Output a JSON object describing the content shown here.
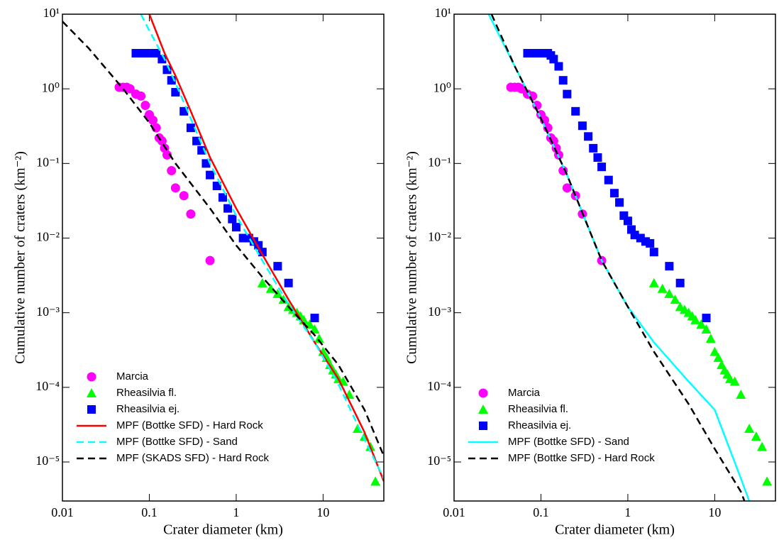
{
  "chart_data": [
    {
      "type": "line",
      "log_x": true,
      "log_y": true,
      "legend": "lower left",
      "xlabel": "Crater diameter (km)",
      "ylabel": "Cumulative number of craters (km⁻²)",
      "xlim": [
        0.01,
        50
      ],
      "ylim": [
        3e-06,
        10
      ],
      "xticks": [
        0.01,
        0.1,
        1,
        10
      ],
      "yticks": [
        {
          "value": 1e-05,
          "label": "10⁻⁵"
        },
        {
          "value": 0.0001,
          "label": "10⁻⁴"
        },
        {
          "value": 0.001,
          "label": "10⁻³"
        },
        {
          "value": 0.01,
          "label": "10⁻²"
        },
        {
          "value": 0.1,
          "label": "10⁻¹"
        },
        {
          "value": 1,
          "label": "10⁰"
        },
        {
          "value": 10,
          "label": "10¹"
        }
      ],
      "series": [
        {
          "name": "Marcia",
          "color": "#ff00ff",
          "style": "circle",
          "x": [
            0.045,
            0.05,
            0.055,
            0.06,
            0.07,
            0.08,
            0.09,
            0.1,
            0.11,
            0.12,
            0.13,
            0.14,
            0.15,
            0.16,
            0.18,
            0.2,
            0.25,
            0.3,
            0.5
          ],
          "values": [
            1.05,
            1.05,
            1.05,
            1.0,
            0.85,
            0.8,
            0.6,
            0.45,
            0.38,
            0.3,
            0.22,
            0.2,
            0.16,
            0.13,
            0.08,
            0.047,
            0.037,
            0.021,
            0.005
          ]
        },
        {
          "name": "Rheasilvia fl.",
          "color": "#00ff00",
          "style": "triangle",
          "x": [
            2,
            2.5,
            3,
            3.5,
            4,
            4.5,
            5,
            5.5,
            6,
            7,
            8,
            9,
            10,
            11,
            12,
            13,
            14,
            15,
            17,
            20,
            25,
            30,
            35,
            40
          ],
          "values": [
            0.0025,
            0.0021,
            0.0018,
            0.0015,
            0.0012,
            0.0011,
            0.001,
            0.0009,
            0.0008,
            0.0007,
            0.0006,
            0.00045,
            0.0003,
            0.00025,
            0.0002,
            0.00017,
            0.00015,
            0.00013,
            0.00012,
            8e-05,
            2.8e-05,
            2.2e-05,
            1.6e-05,
            5.5e-06
          ]
        },
        {
          "name": "Rheasilvia ej.",
          "color": "#0000ff",
          "style": "square",
          "x": [
            0.07,
            0.08,
            0.09,
            0.1,
            0.11,
            0.12,
            0.14,
            0.16,
            0.18,
            0.2,
            0.25,
            0.3,
            0.35,
            0.4,
            0.45,
            0.5,
            0.6,
            0.7,
            0.8,
            0.9,
            1.0,
            1.2,
            1.4,
            1.6,
            1.8,
            2.0,
            3.0,
            4.0,
            8.0
          ],
          "values": [
            3.0,
            3.0,
            3.0,
            3.0,
            3.0,
            3.0,
            2.5,
            1.8,
            1.3,
            0.9,
            0.5,
            0.3,
            0.2,
            0.15,
            0.1,
            0.07,
            0.05,
            0.035,
            0.025,
            0.018,
            0.014,
            0.01,
            0.01,
            0.009,
            0.008,
            0.0065,
            0.0042,
            0.0025,
            0.00085
          ]
        },
        {
          "name": "MPF (Bottke SFD) - Hard Rock",
          "color": "#ff0000",
          "style": "line",
          "x": [
            0.1,
            0.15,
            0.2,
            0.3,
            0.5,
            1,
            2,
            4,
            8,
            15,
            30,
            50
          ],
          "values": [
            10,
            3,
            1.5,
            0.5,
            0.12,
            0.025,
            0.006,
            0.0015,
            0.0004,
            0.00013,
            2.5e-05,
            5.5e-06
          ]
        },
        {
          "name": "MPF (Bottke SFD) - Sand",
          "color": "#00ffff",
          "style": "dash",
          "x": [
            0.08,
            0.1,
            0.15,
            0.2,
            0.3,
            0.5,
            1,
            2,
            4,
            8,
            15,
            30,
            50
          ],
          "values": [
            10,
            6,
            2.5,
            1.2,
            0.4,
            0.1,
            0.02,
            0.005,
            0.0013,
            0.0004,
            0.00011,
            2e-05,
            6e-06
          ]
        },
        {
          "name": "MPF (SKADS SFD) - Hard Rock",
          "color": "#000000",
          "style": "dash",
          "x": [
            0.01,
            0.02,
            0.05,
            0.1,
            0.2,
            0.5,
            1,
            2,
            4,
            8,
            15,
            30,
            50
          ],
          "values": [
            8,
            3.5,
            1.0,
            0.35,
            0.1,
            0.025,
            0.008,
            0.003,
            0.0012,
            0.0005,
            0.0002,
            5e-05,
            1.2e-05
          ]
        }
      ]
    },
    {
      "type": "line",
      "log_x": true,
      "log_y": true,
      "legend": "lower left",
      "xlabel": "Crater diameter (km)",
      "ylabel": "Cumulative number of craters (km⁻²)",
      "xlim": [
        0.01,
        50
      ],
      "ylim": [
        3e-06,
        10
      ],
      "xticks": [
        0.01,
        0.1,
        1,
        10
      ],
      "yticks": [
        {
          "value": 1e-05,
          "label": "10⁻⁵"
        },
        {
          "value": 0.0001,
          "label": "10⁻⁴"
        },
        {
          "value": 0.001,
          "label": "10⁻³"
        },
        {
          "value": 0.01,
          "label": "10⁻²"
        },
        {
          "value": 0.1,
          "label": "10⁻¹"
        },
        {
          "value": 1,
          "label": "10⁰"
        },
        {
          "value": 10,
          "label": "10¹"
        }
      ],
      "series": [
        {
          "name": "Marcia",
          "color": "#ff00ff",
          "style": "circle",
          "x": [
            0.045,
            0.05,
            0.055,
            0.06,
            0.07,
            0.08,
            0.09,
            0.1,
            0.11,
            0.12,
            0.13,
            0.14,
            0.15,
            0.16,
            0.18,
            0.2,
            0.25,
            0.3,
            0.5
          ],
          "values": [
            1.05,
            1.05,
            1.05,
            1.0,
            0.85,
            0.8,
            0.6,
            0.45,
            0.38,
            0.3,
            0.22,
            0.2,
            0.16,
            0.13,
            0.08,
            0.047,
            0.037,
            0.021,
            0.005
          ]
        },
        {
          "name": "Rheasilvia fl.",
          "color": "#00ff00",
          "style": "triangle",
          "x": [
            2,
            2.5,
            3,
            3.5,
            4,
            4.5,
            5,
            5.5,
            6,
            7,
            8,
            9,
            10,
            11,
            12,
            13,
            14,
            15,
            17,
            20,
            25,
            30,
            35,
            40
          ],
          "values": [
            0.0025,
            0.0021,
            0.0018,
            0.0015,
            0.0012,
            0.0011,
            0.001,
            0.0009,
            0.0008,
            0.0007,
            0.0006,
            0.00045,
            0.0003,
            0.00025,
            0.0002,
            0.00017,
            0.00015,
            0.00013,
            0.00012,
            8e-05,
            2.8e-05,
            2.2e-05,
            1.6e-05,
            5.5e-06
          ]
        },
        {
          "name": "Rheasilvia ej.",
          "color": "#0000ff",
          "style": "square",
          "x": [
            0.07,
            0.08,
            0.09,
            0.1,
            0.11,
            0.12,
            0.13,
            0.14,
            0.16,
            0.18,
            0.2,
            0.25,
            0.3,
            0.35,
            0.4,
            0.45,
            0.5,
            0.6,
            0.7,
            0.8,
            0.9,
            1.0,
            1.1,
            1.2,
            1.4,
            1.6,
            1.8,
            2.0,
            3.0,
            4.0,
            8.0
          ],
          "values": [
            3.0,
            3.0,
            3.0,
            3.0,
            3.0,
            3.0,
            2.8,
            2.5,
            2.0,
            1.3,
            0.85,
            0.5,
            0.32,
            0.23,
            0.16,
            0.12,
            0.09,
            0.06,
            0.04,
            0.03,
            0.02,
            0.017,
            0.013,
            0.011,
            0.01,
            0.009,
            0.0085,
            0.0065,
            0.0042,
            0.0025,
            0.00085
          ]
        },
        {
          "name": "MPF (Bottke SFD) - Sand",
          "color": "#00ffff",
          "style": "line",
          "x": [
            0.025,
            0.05,
            0.1,
            0.2,
            0.5,
            1,
            2,
            5,
            10,
            20,
            25
          ],
          "values": [
            10,
            2,
            0.4,
            0.07,
            0.005,
            0.0012,
            0.0004,
            0.00012,
            5e-05,
            6e-06,
            3e-06
          ]
        },
        {
          "name": "MPF (Bottke SFD) - Hard Rock",
          "color": "#000000",
          "style": "dash",
          "x": [
            0.027,
            0.05,
            0.1,
            0.2,
            0.5,
            1,
            2,
            5,
            10,
            20,
            22
          ],
          "values": [
            10,
            2,
            0.4,
            0.07,
            0.005,
            0.0012,
            0.0003,
            6e-05,
            1.5e-05,
            4e-06,
            3e-06
          ]
        }
      ]
    }
  ]
}
